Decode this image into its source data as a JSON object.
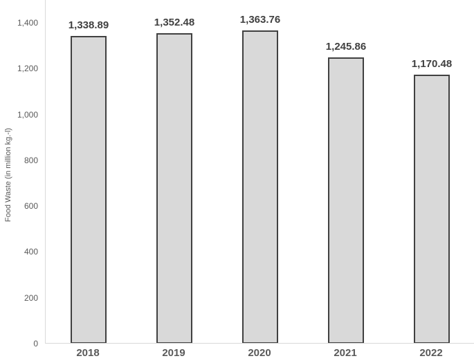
{
  "chart_data": {
    "type": "bar",
    "title": "",
    "xlabel": "",
    "ylabel": "Food Waste (in million kg.-l)",
    "categories": [
      "2018",
      "2019",
      "2020",
      "2021",
      "2022"
    ],
    "values": [
      1338.89,
      1352.48,
      1363.76,
      1245.86,
      1170.48
    ],
    "data_labels": [
      "1,338.89",
      "1,352.48",
      "1,363.76",
      "1,245.86",
      "1,170.48"
    ],
    "ylim": [
      0,
      1500
    ],
    "yticks": [
      0,
      200,
      400,
      600,
      800,
      1000,
      1200,
      1400
    ],
    "ytick_labels": [
      "0",
      "200",
      "400",
      "600",
      "800",
      "1,000",
      "1,200",
      "1,400"
    ],
    "grid": false,
    "legend": false,
    "colors": {
      "bar_fill": "#d9d9d9",
      "bar_border": "#404040",
      "axis_line": "#d9d9d9",
      "tick_text": "#595959",
      "data_label_text": "#404040",
      "axis_title_text": "#595959",
      "background": "#ffffff"
    }
  }
}
